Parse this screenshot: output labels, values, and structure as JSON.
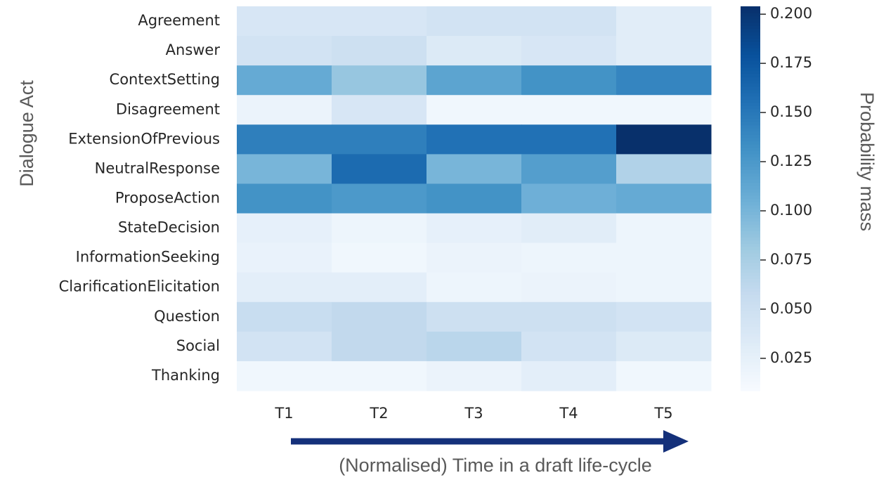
{
  "chart_data": {
    "type": "heatmap",
    "colormap": "Blues",
    "x": [
      "T1",
      "T2",
      "T3",
      "T4",
      "T5"
    ],
    "y": [
      "Agreement",
      "Answer",
      "ContextSetting",
      "Disagreement",
      "ExtensionOfPrevious",
      "NeutralResponse",
      "ProposeAction",
      "StateDecision",
      "InformationSeeking",
      "ClarificationElicitation",
      "Question",
      "Social",
      "Thanking"
    ],
    "values": [
      [
        0.04,
        0.04,
        0.045,
        0.045,
        0.03
      ],
      [
        0.045,
        0.05,
        0.035,
        0.04,
        0.03
      ],
      [
        0.11,
        0.085,
        0.115,
        0.13,
        0.14
      ],
      [
        0.02,
        0.04,
        0.015,
        0.015,
        0.015
      ],
      [
        0.145,
        0.145,
        0.155,
        0.155,
        0.204
      ],
      [
        0.1,
        0.16,
        0.1,
        0.12,
        0.07
      ],
      [
        0.13,
        0.125,
        0.13,
        0.105,
        0.11
      ],
      [
        0.025,
        0.018,
        0.025,
        0.03,
        0.018
      ],
      [
        0.022,
        0.015,
        0.02,
        0.018,
        0.018
      ],
      [
        0.028,
        0.028,
        0.018,
        0.02,
        0.018
      ],
      [
        0.055,
        0.06,
        0.05,
        0.05,
        0.045
      ],
      [
        0.045,
        0.06,
        0.065,
        0.045,
        0.035
      ],
      [
        0.015,
        0.015,
        0.02,
        0.028,
        0.015
      ]
    ],
    "clim": [
      0.0085,
      0.204
    ],
    "cticks": [
      0.025,
      {
        "value": 0.05,
        "label": "0.050"
      },
      0.075,
      {
        "value": 0.1,
        "label": "0.100"
      },
      0.125,
      {
        "value": 0.15,
        "label": "0.150"
      },
      0.175,
      {
        "value": 0.2,
        "label": "0.200"
      }
    ],
    "ylabel": "Dialogue Act",
    "xlabel": "(Normalised) Time in a draft life-cycle",
    "colorbar_label": "Probability mass"
  }
}
